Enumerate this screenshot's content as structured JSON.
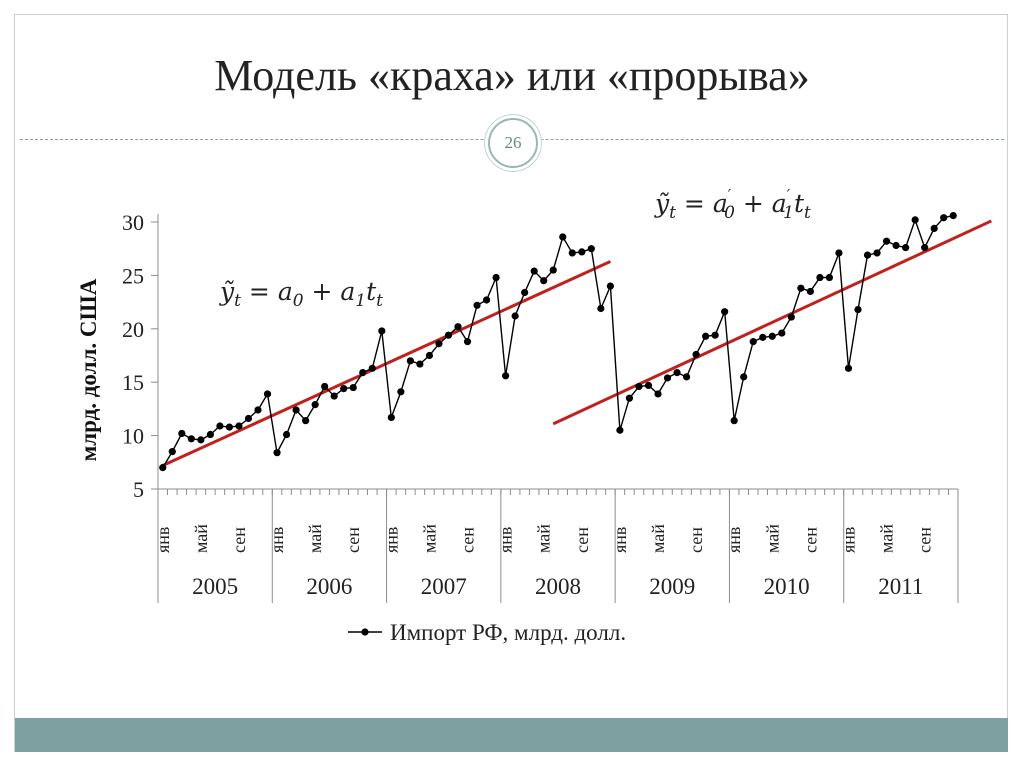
{
  "slide": {
    "title": "Модель «краха» или «прорыва»",
    "page_number": "26"
  },
  "chart_data": {
    "type": "line",
    "ylabel": "млрд. долл. США",
    "ylim": [
      5,
      30
    ],
    "yticks": [
      5,
      10,
      15,
      20,
      25,
      30
    ],
    "years": [
      "2005",
      "2006",
      "2007",
      "2008",
      "2009",
      "2010",
      "2011"
    ],
    "month_labels": [
      "янв",
      "май",
      "сен"
    ],
    "legend": {
      "label": "Импорт РФ, млрд. долл.",
      "position": "bottom"
    },
    "series": [
      {
        "name": "Импорт РФ, млрд. долл.",
        "color": "#000000",
        "values": [
          7.0,
          8.5,
          10.2,
          9.7,
          9.6,
          10.1,
          10.9,
          10.8,
          10.9,
          11.6,
          12.4,
          13.9,
          8.4,
          10.1,
          12.4,
          11.4,
          12.9,
          14.6,
          13.7,
          14.4,
          14.5,
          15.9,
          16.3,
          19.8,
          11.7,
          14.1,
          17.0,
          16.7,
          17.5,
          18.6,
          19.4,
          20.2,
          18.8,
          22.2,
          22.7,
          24.8,
          15.6,
          21.2,
          23.4,
          25.4,
          24.5,
          25.5,
          28.6,
          27.1,
          27.2,
          27.5,
          21.9,
          24.0,
          10.5,
          13.5,
          14.6,
          14.7,
          13.9,
          15.4,
          15.9,
          15.5,
          17.6,
          19.3,
          19.4,
          21.6,
          11.4,
          15.5,
          18.8,
          19.2,
          19.3,
          19.6,
          21.1,
          23.8,
          23.5,
          24.8,
          24.8,
          27.1,
          16.3,
          21.8,
          26.9,
          27.1,
          28.2,
          27.8,
          27.6,
          30.2,
          27.6,
          29.4,
          30.4,
          30.6
        ]
      }
    ],
    "trend_lines": [
      {
        "color": "#c0201e",
        "x0": 0,
        "y0": 7.2,
        "x1": 47,
        "y1": 26.3
      },
      {
        "color": "#c0201e",
        "x0": 41,
        "y0": 11.1,
        "x1": 87,
        "y1": 30.1
      }
    ],
    "equations": [
      {
        "lhs": "ỹ",
        "lhs_sub": "t",
        "rhs": [
          [
            "a",
            "0"
          ],
          [
            "a",
            "1"
          ]
        ],
        "t_sub": "t",
        "primes": false
      },
      {
        "lhs": "ỹ",
        "lhs_sub": "t",
        "rhs": [
          [
            "a",
            "0"
          ],
          [
            "a",
            "1"
          ]
        ],
        "t_sub": "t",
        "primes": true
      }
    ],
    "grid": false
  }
}
